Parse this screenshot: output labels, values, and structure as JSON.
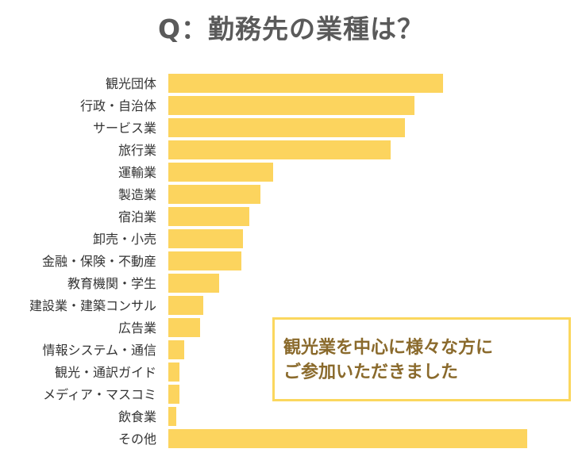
{
  "title": "Q：勤務先の業種は？",
  "callout": {
    "line1": "観光業を中心に様々な方に",
    "line2": "ご参加いただきました"
  },
  "colors": {
    "bar": "#fcd45e",
    "title": "#5a5a5a",
    "label": "#333333",
    "callout_border": "#fbd75e",
    "callout_text": "#8a6a2c"
  },
  "chart_data": {
    "type": "bar",
    "orientation": "horizontal",
    "title": "Q：勤務先の業種は？",
    "xlabel": "",
    "ylabel": "",
    "categories": [
      "観光団体",
      "行政・自治体",
      "サービス業",
      "旅行業",
      "運輸業",
      "製造業",
      "宿泊業",
      "卸売・小売",
      "金融・保険・不動産",
      "教育機関・学生",
      "建設業・建築コンサル",
      "広告業",
      "情報システム・通信",
      "観光・通訳ガイド",
      "メディア・マスコミ",
      "飲食業",
      "その他"
    ],
    "values": [
      346,
      310,
      298,
      280,
      132,
      116,
      102,
      94,
      92,
      64,
      44,
      40,
      20,
      14,
      14,
      10,
      452
    ],
    "value_axis_shown": false,
    "grid": false,
    "legend": "none"
  }
}
